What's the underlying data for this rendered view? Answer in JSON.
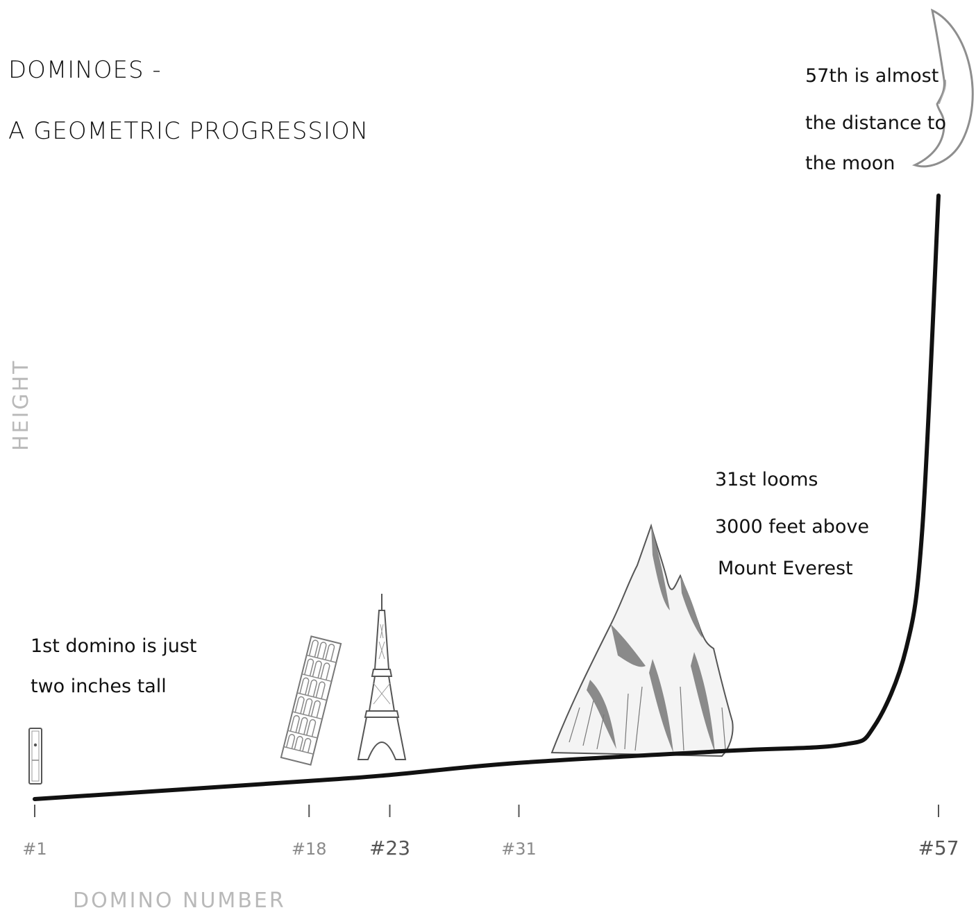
{
  "chart_data": {
    "type": "line",
    "title": "DOMINOES -",
    "subtitle": "A GEOMETRIC PROGRESSION",
    "xlabel": "DOMINO NUMBER",
    "ylabel": "HEIGHT",
    "x_ticks": [
      "#1",
      "#18",
      "#23",
      "#31",
      "#57"
    ],
    "x_tick_values": [
      1,
      18,
      23,
      31,
      57
    ],
    "curve_points": [
      {
        "x": 1,
        "y": 0
      },
      {
        "x": 18,
        "y": 0.03
      },
      {
        "x": 23,
        "y": 0.04
      },
      {
        "x": 31,
        "y": 0.06
      },
      {
        "x": 44,
        "y": 0.08
      },
      {
        "x": 51,
        "y": 0.09
      },
      {
        "x": 53,
        "y": 0.12
      },
      {
        "x": 55,
        "y": 0.25
      },
      {
        "x": 56,
        "y": 0.45
      },
      {
        "x": 57,
        "y": 1.0
      }
    ],
    "xlim": [
      1,
      57
    ],
    "ylim": [
      0,
      1
    ],
    "grid": false,
    "line_color": "#111111",
    "annotations": [
      {
        "x": 1,
        "lines": [
          "1st domino is just",
          "two inches tall"
        ],
        "icon": "domino-icon"
      },
      {
        "x": 18,
        "icon": "leaning-tower-of-pisa-icon"
      },
      {
        "x": 23,
        "icon": "eiffel-tower-icon"
      },
      {
        "x": 31,
        "lines": [
          "31st looms",
          "3000 feet above",
          "Mount Everest"
        ],
        "icon": "mountain-icon"
      },
      {
        "x": 57,
        "lines": [
          "57th is almost",
          "the distance to",
          "the moon"
        ],
        "icon": "crescent-moon-icon"
      }
    ]
  }
}
